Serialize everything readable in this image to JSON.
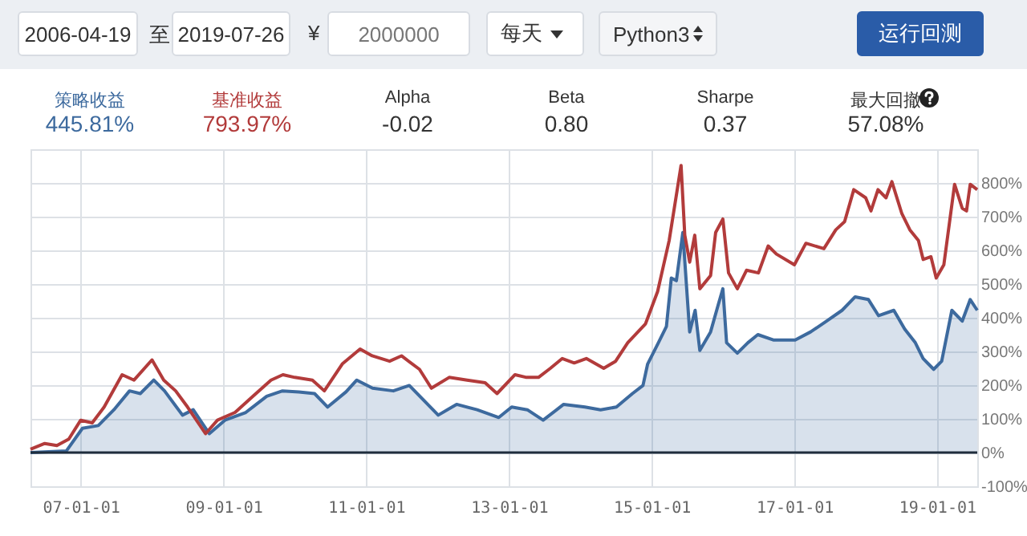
{
  "chart_data": {
    "type": "line",
    "legend": "top",
    "grid": true,
    "xlim": [
      "2006-04-19",
      "2019-07-26"
    ],
    "xticks": [
      {
        "value": "2007-01-01",
        "label": "07-01-01"
      },
      {
        "value": "2009-01-01",
        "label": "09-01-01"
      },
      {
        "value": "2011-01-01",
        "label": "11-01-01"
      },
      {
        "value": "2013-01-01",
        "label": "13-01-01"
      },
      {
        "value": "2015-01-01",
        "label": "15-01-01"
      },
      {
        "value": "2017-01-01",
        "label": "17-01-01"
      },
      {
        "value": "2019-01-01",
        "label": "19-01-01"
      }
    ],
    "ylim": [
      -100,
      900
    ],
    "yticks": [
      {
        "value": -100,
        "label": "-100%"
      },
      {
        "value": 0,
        "label": "0%"
      },
      {
        "value": 100,
        "label": "100%"
      },
      {
        "value": 200,
        "label": "200%"
      },
      {
        "value": 300,
        "label": "300%"
      },
      {
        "value": 400,
        "label": "400%"
      },
      {
        "value": 500,
        "label": "500%"
      },
      {
        "value": 600,
        "label": "600%"
      },
      {
        "value": 700,
        "label": "700%"
      },
      {
        "value": 800,
        "label": "800%"
      }
    ],
    "ref_lines": [
      {
        "axis": "y",
        "value": 0,
        "color": "#1f2d3d"
      }
    ],
    "annotations": [
      "2006-04-19",
      "至",
      "2019-07-26",
      "¥",
      "2000000",
      "每天",
      "Python3",
      "运行回测",
      "445.81%",
      "793.97%",
      "Alpha",
      "-0.02",
      "Beta",
      "0.80",
      "Sharpe",
      "0.37",
      "最大回撤",
      "57.08%"
    ],
    "series": [
      {
        "name": "策略收益",
        "type": "area",
        "color": "#3d6a9e",
        "x": [
          "2006-04-19",
          "2006-10-20",
          "2007-01-10",
          "2007-04-01",
          "2007-06-20",
          "2007-09-08",
          "2007-11-02",
          "2008-01-10",
          "2008-03-05",
          "2008-06-05",
          "2008-07-30",
          "2008-10-20",
          "2009-01-08",
          "2009-04-25",
          "2009-08-10",
          "2009-10-30",
          "2010-01-22",
          "2010-04-12",
          "2010-06-18",
          "2010-09-20",
          "2010-11-14",
          "2011-02-03",
          "2011-05-20",
          "2011-08-10",
          "2011-10-30",
          "2012-01-05",
          "2012-04-08",
          "2012-07-22",
          "2012-11-10",
          "2013-01-15",
          "2013-04-05",
          "2013-06-25",
          "2013-10-08",
          "2014-01-25",
          "2014-04-15",
          "2014-07-05",
          "2014-09-25",
          "2014-11-18",
          "2014-12-12",
          "2015-02-05",
          "2015-03-18",
          "2015-04-12",
          "2015-05-08",
          "2015-06-10",
          "2015-07-15",
          "2015-08-12",
          "2015-09-05",
          "2015-10-30",
          "2015-12-08",
          "2016-01-01",
          "2016-01-20",
          "2016-03-15",
          "2016-05-08",
          "2016-06-28",
          "2016-09-15",
          "2017-01-05",
          "2017-03-25",
          "2017-06-15",
          "2017-09-02",
          "2017-11-08",
          "2018-01-15",
          "2018-03-08",
          "2018-05-25",
          "2018-07-20",
          "2018-09-12",
          "2018-10-22",
          "2018-12-15",
          "2019-01-25",
          "2019-03-18",
          "2019-05-10",
          "2019-06-20",
          "2019-07-26"
        ],
        "values": [
          0,
          5,
          72,
          80,
          127,
          183,
          175,
          215,
          183,
          111,
          127,
          56,
          96,
          119,
          167,
          183,
          180,
          175,
          135,
          180,
          215,
          191,
          183,
          199,
          151,
          111,
          143,
          127,
          104,
          135,
          127,
          96,
          143,
          135,
          127,
          135,
          175,
          199,
          263,
          326,
          374,
          518,
          510,
          653,
          358,
          422,
          303,
          358,
          438,
          486,
          326,
          295,
          326,
          350,
          334,
          334,
          358,
          390,
          422,
          462,
          454,
          406,
          422,
          366,
          326,
          279,
          247,
          271,
          422,
          390,
          454,
          422
        ]
      },
      {
        "name": "基准收益",
        "type": "line",
        "color": "#b23b3b",
        "x": [
          "2006-04-19",
          "2006-07-01",
          "2006-09-01",
          "2006-11-01",
          "2007-01-01",
          "2007-03-01",
          "2007-05-01",
          "2007-08-01",
          "2007-10-01",
          "2008-01-01",
          "2008-03-01",
          "2008-05-01",
          "2008-07-01",
          "2008-10-01",
          "2008-12-01",
          "2009-03-01",
          "2009-06-01",
          "2009-09-01",
          "2009-11-01",
          "2010-01-01",
          "2010-04-01",
          "2010-06-01",
          "2010-09-01",
          "2010-12-01",
          "2011-02-01",
          "2011-05-01",
          "2011-07-01",
          "2011-10-01",
          "2011-12-01",
          "2012-03-01",
          "2012-06-01",
          "2012-09-01",
          "2012-11-01",
          "2013-02-01",
          "2013-04-01",
          "2013-06-01",
          "2013-08-01",
          "2013-10-01",
          "2013-12-01",
          "2014-02-01",
          "2014-05-01",
          "2014-07-01",
          "2014-09-01",
          "2014-12-01",
          "2015-02-01",
          "2015-04-01",
          "2015-06-01",
          "2015-06-20",
          "2015-07-15",
          "2015-08-10",
          "2015-09-05",
          "2015-10-30",
          "2015-11-25",
          "2016-01-01",
          "2016-01-30",
          "2016-03-15",
          "2016-05-01",
          "2016-07-01",
          "2016-08-20",
          "2016-10-01",
          "2017-01-01",
          "2017-03-01",
          "2017-06-01",
          "2017-08-01",
          "2017-09-15",
          "2017-11-01",
          "2018-01-01",
          "2018-01-28",
          "2018-03-05",
          "2018-04-15",
          "2018-05-15",
          "2018-07-05",
          "2018-08-15",
          "2018-09-28",
          "2018-10-22",
          "2018-12-01",
          "2018-12-28",
          "2019-02-05",
          "2019-04-01",
          "2019-05-10",
          "2019-06-01",
          "2019-06-20",
          "2019-07-26"
        ],
        "values": [
          10,
          27,
          21,
          40,
          96,
          88,
          135,
          231,
          215,
          275,
          215,
          183,
          135,
          56,
          96,
          119,
          167,
          215,
          231,
          223,
          215,
          183,
          263,
          307,
          287,
          271,
          287,
          247,
          191,
          223,
          215,
          207,
          175,
          231,
          223,
          223,
          250,
          279,
          266,
          279,
          250,
          271,
          326,
          382,
          478,
          629,
          852,
          645,
          565,
          645,
          486,
          525,
          653,
          693,
          533,
          486,
          541,
          533,
          613,
          589,
          557,
          621,
          605,
          661,
          685,
          780,
          756,
          717,
          780,
          756,
          804,
          709,
          661,
          629,
          573,
          581,
          518,
          557,
          796,
          725,
          717,
          796,
          780
        ]
      }
    ]
  }
}
